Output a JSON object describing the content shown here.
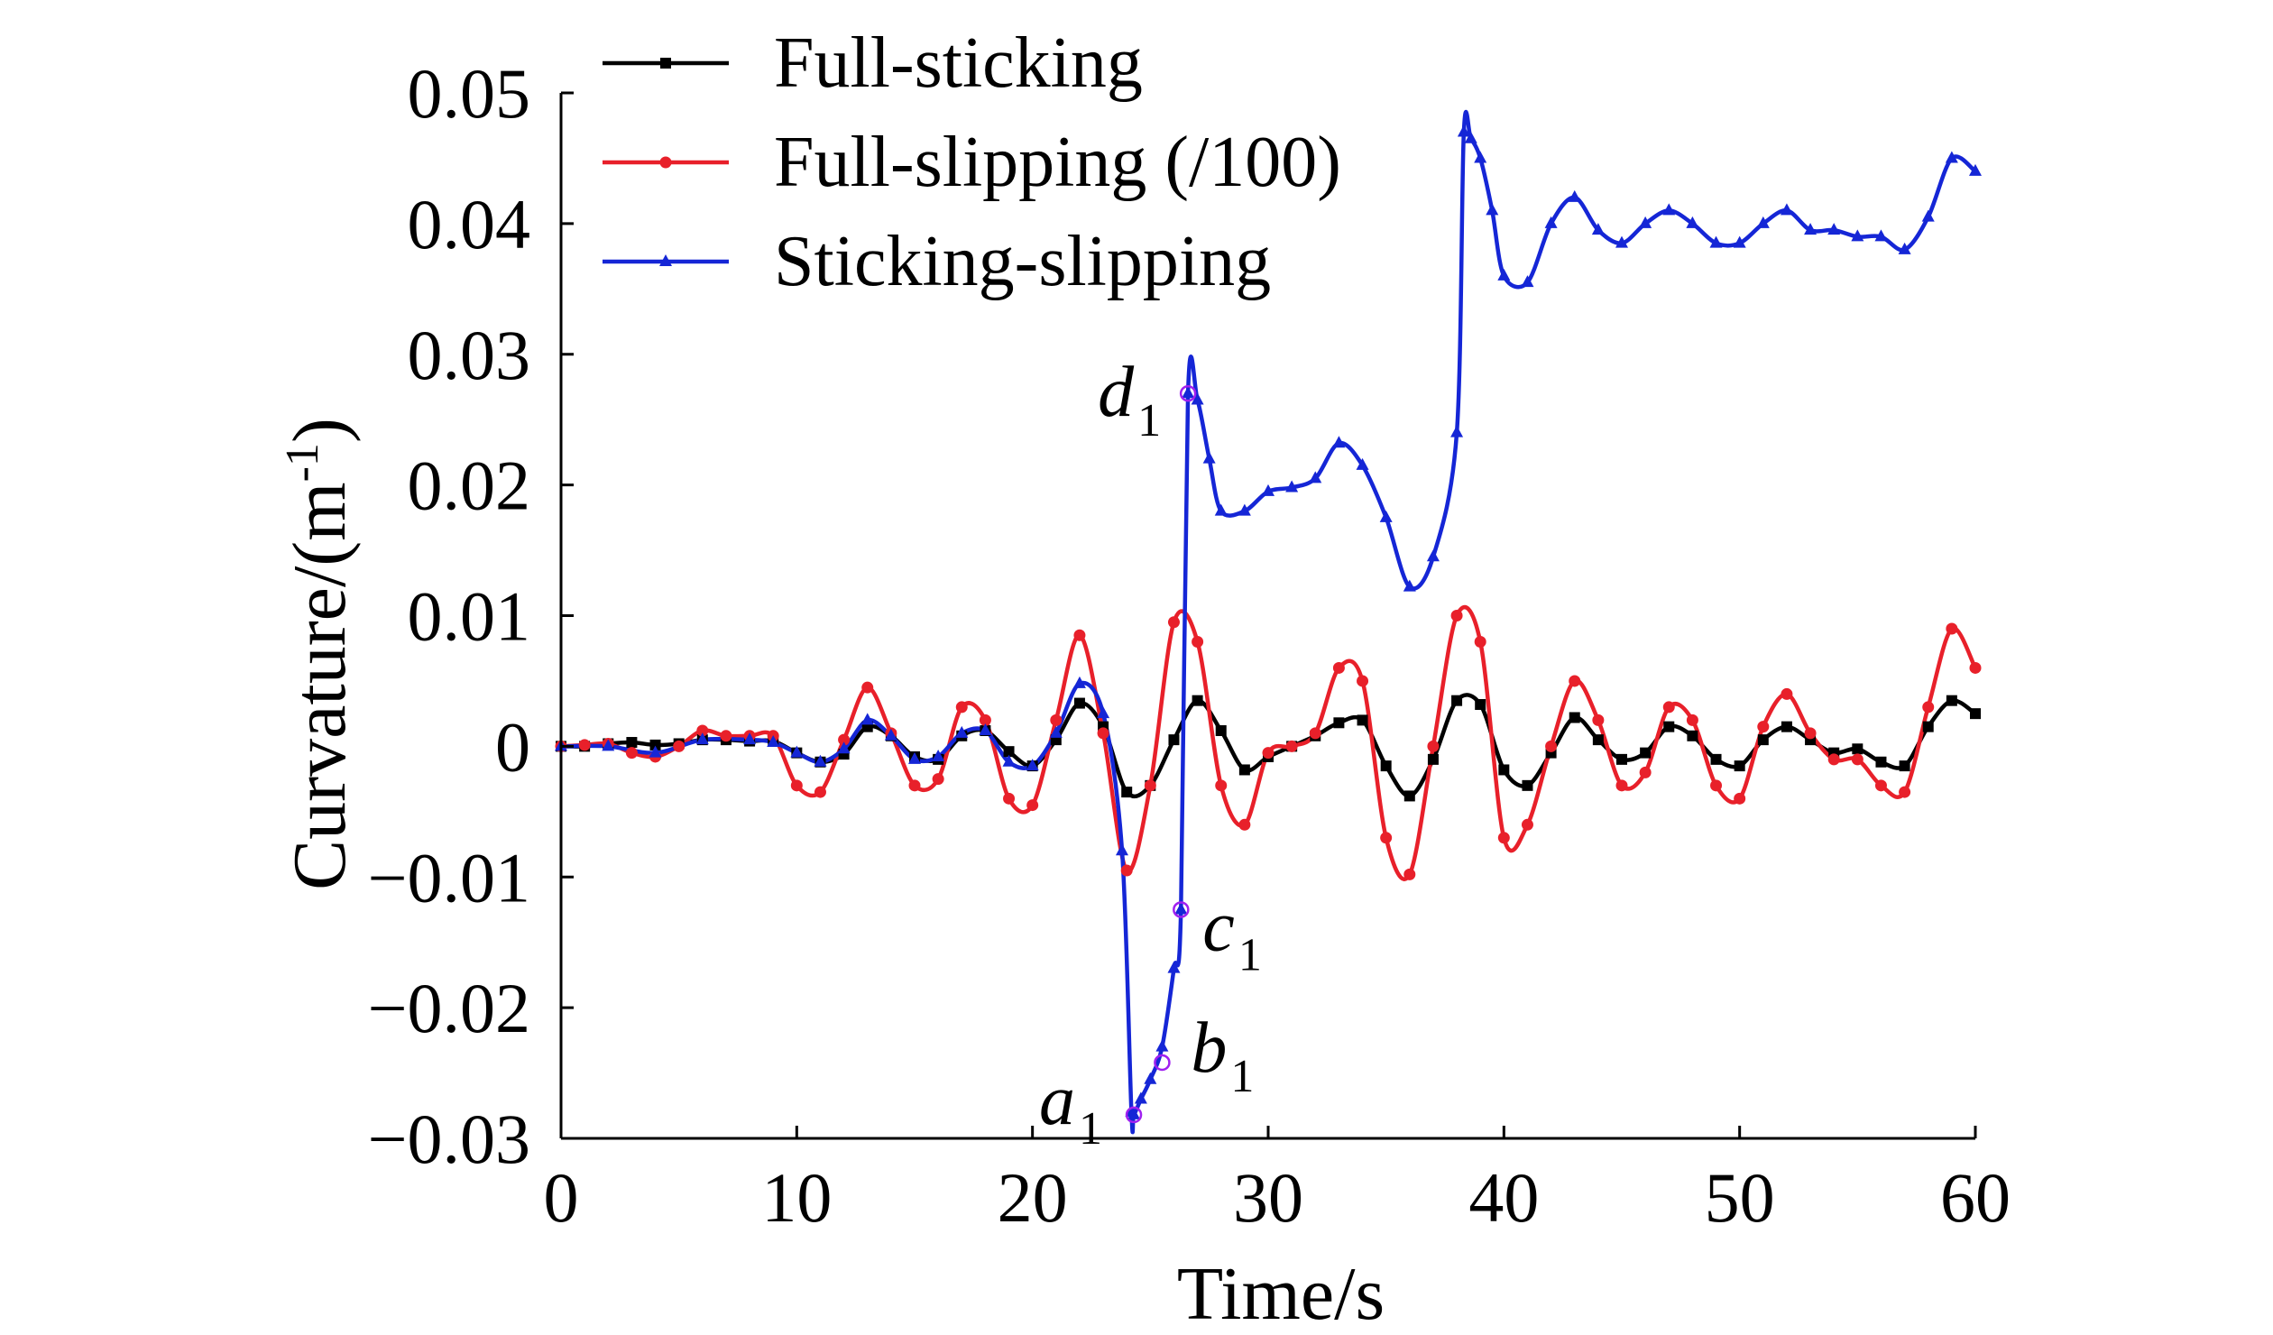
{
  "chart_data": {
    "type": "line",
    "xlabel": "Time/s",
    "ylabel": "Curvature/(m",
    "ylabel_sup": "-1",
    "ylabel_close": ")",
    "xlim": [
      0,
      60
    ],
    "ylim": [
      -0.03,
      0.05
    ],
    "x_ticks": [
      0,
      10,
      20,
      30,
      40,
      50,
      60
    ],
    "x_tick_labels": [
      "0",
      "10",
      "20",
      "30",
      "40",
      "50",
      "60"
    ],
    "y_ticks": [
      -0.03,
      -0.02,
      -0.01,
      0,
      0.01,
      0.02,
      0.03,
      0.04,
      0.05
    ],
    "y_tick_labels": [
      "−0.03",
      "−0.02",
      "−0.01",
      "0",
      "0.01",
      "0.02",
      "0.03",
      "0.04",
      "0.05"
    ],
    "grid": false,
    "legend_position": "top-left",
    "series": [
      {
        "name": "Full-sticking",
        "color": "#000000",
        "marker": "square",
        "x": [
          0,
          1,
          2,
          3,
          4,
          5,
          6,
          7,
          8,
          9,
          10,
          11,
          12,
          13,
          14,
          15,
          16,
          17,
          18,
          19,
          20,
          21,
          22,
          23,
          24,
          25,
          26,
          27,
          28,
          29,
          30,
          31,
          32,
          33,
          34,
          35,
          36,
          37,
          38,
          39,
          40,
          41,
          42,
          43,
          44,
          45,
          46,
          47,
          48,
          49,
          50,
          51,
          52,
          53,
          54,
          55,
          56,
          57,
          58,
          59,
          60
        ],
        "y": [
          0,
          0,
          0.0002,
          0.0003,
          0.0001,
          0.0002,
          0.0005,
          0.0005,
          0.0004,
          0.0004,
          -0.0005,
          -0.0012,
          -0.0006,
          0.0015,
          0.0008,
          -0.0008,
          -0.001,
          0.0008,
          0.0012,
          -0.0004,
          -0.0015,
          0.0005,
          0.0033,
          0.0015,
          -0.0035,
          -0.003,
          0.0005,
          0.0035,
          0.0012,
          -0.0018,
          -0.0008,
          0,
          0.0008,
          0.0018,
          0.002,
          -0.0015,
          -0.0038,
          -0.001,
          0.0035,
          0.0032,
          -0.0018,
          -0.003,
          -0.0005,
          0.0022,
          0.0005,
          -0.001,
          -0.0005,
          0.0015,
          0.0008,
          -0.001,
          -0.0015,
          0.0005,
          0.0015,
          0.0005,
          -0.0005,
          -0.0002,
          -0.0012,
          -0.0015,
          0.0015,
          0.0035,
          0.0025
        ]
      },
      {
        "name": "Full-slipping (/100)",
        "color": "#e8202a",
        "marker": "circle",
        "x": [
          0,
          1,
          2,
          3,
          4,
          5,
          6,
          7,
          8,
          9,
          10,
          11,
          12,
          13,
          14,
          15,
          16,
          17,
          18,
          19,
          20,
          21,
          22,
          23,
          24,
          25,
          26,
          27,
          28,
          29,
          30,
          31,
          32,
          33,
          34,
          35,
          36,
          37,
          38,
          39,
          40,
          41,
          42,
          43,
          44,
          45,
          46,
          47,
          48,
          49,
          50,
          51,
          52,
          53,
          54,
          55,
          56,
          57,
          58,
          59,
          60
        ],
        "y": [
          0,
          0.0001,
          0.0002,
          -0.0005,
          -0.0008,
          0,
          0.0012,
          0.0008,
          0.0008,
          0.0008,
          -0.003,
          -0.0035,
          0.0005,
          0.0045,
          0.001,
          -0.003,
          -0.0025,
          0.003,
          0.002,
          -0.004,
          -0.0045,
          0.002,
          0.0085,
          0.001,
          -0.0095,
          -0.003,
          0.0095,
          0.008,
          -0.003,
          -0.006,
          -0.0005,
          0,
          0.001,
          0.006,
          0.005,
          -0.007,
          -0.0098,
          0,
          0.01,
          0.008,
          -0.007,
          -0.006,
          0,
          0.005,
          0.002,
          -0.003,
          -0.002,
          0.003,
          0.002,
          -0.003,
          -0.004,
          0.0015,
          0.004,
          0.001,
          -0.001,
          -0.001,
          -0.003,
          -0.0035,
          0.003,
          0.009,
          0.006
        ]
      },
      {
        "name": "Sticking-slipping",
        "color": "#1526d6",
        "marker": "triangle",
        "x": [
          0,
          2,
          4,
          6,
          8,
          9,
          10,
          11,
          12,
          13,
          14,
          15,
          16,
          17,
          18,
          19,
          20,
          21,
          22,
          23,
          23.8,
          24.2,
          24.3,
          24.6,
          25,
          25.5,
          26,
          26.3,
          26.6,
          27,
          27.5,
          28,
          29,
          30,
          31,
          32,
          33,
          34,
          35,
          36,
          37,
          38,
          38.3,
          38.6,
          39,
          39.5,
          40,
          41,
          42,
          43,
          44,
          45,
          46,
          47,
          48,
          49,
          50,
          51,
          52,
          53,
          54,
          55,
          56,
          57,
          58,
          59,
          60
        ],
        "y": [
          0,
          0,
          -0.0005,
          0.0005,
          0.0005,
          0.0003,
          -0.0005,
          -0.0012,
          -0.0002,
          0.002,
          0.0008,
          -0.001,
          -0.0008,
          0.001,
          0.0012,
          -0.0012,
          -0.0015,
          0.001,
          0.0048,
          0.0025,
          -0.008,
          -0.028,
          -0.0282,
          -0.027,
          -0.0255,
          -0.023,
          -0.017,
          -0.0125,
          0.027,
          0.0265,
          0.022,
          0.018,
          0.018,
          0.0195,
          0.0198,
          0.0205,
          0.0232,
          0.0215,
          0.0175,
          0.0122,
          0.0145,
          0.024,
          0.047,
          0.0465,
          0.045,
          0.041,
          0.036,
          0.0355,
          0.04,
          0.042,
          0.0395,
          0.0385,
          0.04,
          0.041,
          0.04,
          0.0385,
          0.0385,
          0.04,
          0.041,
          0.0395,
          0.0395,
          0.039,
          0.039,
          0.038,
          0.0405,
          0.045,
          0.044
        ]
      }
    ],
    "annotations": [
      {
        "letter": "d",
        "sub": "1",
        "x": 26.6,
        "y": 0.027
      },
      {
        "letter": "c",
        "sub": "1",
        "x": 26.3,
        "y": -0.0125
      },
      {
        "letter": "a",
        "sub": "1",
        "x": 24.3,
        "y": -0.0282
      },
      {
        "letter": "b",
        "sub": "1",
        "x": 25.5,
        "y": -0.0242
      }
    ]
  }
}
